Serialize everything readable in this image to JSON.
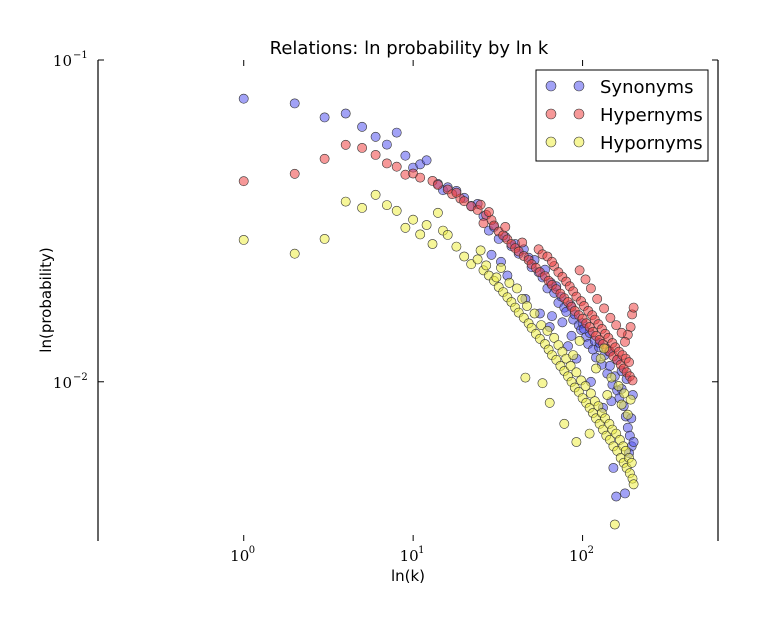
{
  "chart_data": {
    "type": "scatter",
    "title": "Relations: ln probability by ln k",
    "xlabel": "ln(k)",
    "ylabel": "ln(probability)",
    "x_scale": "log",
    "y_scale": "log",
    "xlim": [
      0.138,
      630
    ],
    "ylim": [
      0.0032,
      0.1
    ],
    "x_ticks": [
      {
        "value": 1,
        "base": "10",
        "exp": "0"
      },
      {
        "value": 10,
        "base": "10",
        "exp": "1"
      },
      {
        "value": 100,
        "base": "10",
        "exp": "2"
      }
    ],
    "y_ticks": [
      {
        "value": 0.01,
        "base": "10",
        "exp": "−2"
      },
      {
        "value": 0.1,
        "base": "10",
        "exp": "−1"
      }
    ],
    "grid": false,
    "legend_position": "top-right",
    "series": [
      {
        "name": "Synonyms",
        "color": "#5555ee",
        "points": [
          [
            1,
            0.0758
          ],
          [
            2,
            0.0733
          ],
          [
            3,
            0.0663
          ],
          [
            4,
            0.0682
          ],
          [
            5,
            0.062
          ],
          [
            6,
            0.0577
          ],
          [
            7,
            0.0546
          ],
          [
            8,
            0.0595
          ],
          [
            9,
            0.0504
          ],
          [
            10,
            0.0463
          ],
          [
            11,
            0.0474
          ],
          [
            12,
            0.0488
          ],
          [
            14,
            0.0412
          ],
          [
            15,
            0.0394
          ],
          [
            16,
            0.0402
          ],
          [
            18,
            0.0392
          ],
          [
            20,
            0.0373
          ],
          [
            22,
            0.0352
          ],
          [
            24,
            0.0357
          ],
          [
            26,
            0.0327
          ],
          [
            28,
            0.0295
          ],
          [
            30,
            0.0303
          ],
          [
            32,
            0.0278
          ],
          [
            35,
            0.0282
          ],
          [
            38,
            0.0264
          ],
          [
            40,
            0.0268
          ],
          [
            42,
            0.025
          ],
          [
            45,
            0.0258
          ],
          [
            48,
            0.0243
          ],
          [
            50,
            0.0227
          ],
          [
            52,
            0.0239
          ],
          [
            55,
            0.0219
          ],
          [
            58,
            0.0211
          ],
          [
            60,
            0.0223
          ],
          [
            62,
            0.0195
          ],
          [
            65,
            0.0203
          ],
          [
            68,
            0.0189
          ],
          [
            70,
            0.0198
          ],
          [
            72,
            0.0176
          ],
          [
            75,
            0.0184
          ],
          [
            78,
            0.017
          ],
          [
            80,
            0.0165
          ],
          [
            85,
            0.0173
          ],
          [
            88,
            0.0156
          ],
          [
            90,
            0.0162
          ],
          [
            95,
            0.015
          ],
          [
            98,
            0.0145
          ],
          [
            100,
            0.0152
          ],
          [
            105,
            0.0138
          ],
          [
            108,
            0.0131
          ],
          [
            110,
            0.0142
          ],
          [
            115,
            0.0126
          ],
          [
            118,
            0.0134
          ],
          [
            120,
            0.0119
          ],
          [
            125,
            0.0128
          ],
          [
            130,
            0.0113
          ],
          [
            135,
            0.0121
          ],
          [
            140,
            0.0106
          ],
          [
            145,
            0.0112
          ],
          [
            150,
            0.0098
          ],
          [
            155,
            0.0104
          ],
          [
            160,
            0.0094
          ],
          [
            165,
            0.0089
          ],
          [
            170,
            0.0095
          ],
          [
            175,
            0.0084
          ],
          [
            180,
            0.0078
          ],
          [
            185,
            0.0072
          ],
          [
            190,
            0.0068
          ],
          [
            195,
            0.0063
          ],
          [
            200,
            0.0065
          ],
          [
            152,
            0.0054
          ],
          [
            158,
            0.0044
          ],
          [
            178,
            0.0045
          ],
          [
            188,
            0.006
          ],
          [
            198,
            0.0091
          ],
          [
            148,
            0.0087
          ],
          [
            132,
            0.0083
          ],
          [
            112,
            0.01
          ],
          [
            92,
            0.0118
          ],
          [
            82,
            0.0129
          ],
          [
            64,
            0.0148
          ],
          [
            56,
            0.0163
          ],
          [
            46,
            0.0181
          ],
          [
            36,
            0.0214
          ],
          [
            33,
            0.0236
          ],
          [
            29,
            0.0248
          ],
          [
            170,
            0.0108
          ],
          [
            182,
            0.0102
          ],
          [
            160,
            0.0117
          ],
          [
            143,
            0.0124
          ],
          [
            126,
            0.0132
          ],
          [
            102,
            0.0146
          ],
          [
            86,
            0.0139
          ],
          [
            76,
            0.0153
          ],
          [
            66,
            0.016
          ],
          [
            194,
            0.0077
          ]
        ]
      },
      {
        "name": "Hypernyms",
        "color": "#ee4444",
        "points": [
          [
            1,
            0.042
          ],
          [
            2,
            0.0443
          ],
          [
            3,
            0.0493
          ],
          [
            4,
            0.0545
          ],
          [
            5,
            0.0533
          ],
          [
            6,
            0.0507
          ],
          [
            7,
            0.0477
          ],
          [
            8,
            0.0466
          ],
          [
            9,
            0.044
          ],
          [
            10,
            0.0444
          ],
          [
            11,
            0.0431
          ],
          [
            13,
            0.0421
          ],
          [
            14,
            0.0409
          ],
          [
            16,
            0.0396
          ],
          [
            17,
            0.0383
          ],
          [
            19,
            0.0371
          ],
          [
            20,
            0.0364
          ],
          [
            22,
            0.0351
          ],
          [
            24,
            0.0342
          ],
          [
            25,
            0.0355
          ],
          [
            27,
            0.033
          ],
          [
            29,
            0.0318
          ],
          [
            30,
            0.0306
          ],
          [
            32,
            0.0293
          ],
          [
            34,
            0.0285
          ],
          [
            36,
            0.0277
          ],
          [
            38,
            0.0268
          ],
          [
            40,
            0.026
          ],
          [
            42,
            0.0254
          ],
          [
            45,
            0.0246
          ],
          [
            48,
            0.0239
          ],
          [
            50,
            0.0232
          ],
          [
            53,
            0.0226
          ],
          [
            56,
            0.0219
          ],
          [
            60,
            0.0213
          ],
          [
            63,
            0.0206
          ],
          [
            66,
            0.02
          ],
          [
            70,
            0.0194
          ],
          [
            74,
            0.0188
          ],
          [
            78,
            0.0182
          ],
          [
            82,
            0.0177
          ],
          [
            86,
            0.0171
          ],
          [
            90,
            0.0166
          ],
          [
            95,
            0.0161
          ],
          [
            100,
            0.0157
          ],
          [
            105,
            0.0152
          ],
          [
            110,
            0.0148
          ],
          [
            115,
            0.0143
          ],
          [
            120,
            0.0139
          ],
          [
            126,
            0.0135
          ],
          [
            132,
            0.0131
          ],
          [
            138,
            0.0127
          ],
          [
            145,
            0.0124
          ],
          [
            152,
            0.012
          ],
          [
            160,
            0.0117
          ],
          [
            168,
            0.0113
          ],
          [
            175,
            0.011
          ],
          [
            182,
            0.0107
          ],
          [
            190,
            0.0104
          ],
          [
            197,
            0.0101
          ],
          [
            55,
            0.0258
          ],
          [
            58,
            0.0249
          ],
          [
            62,
            0.0245
          ],
          [
            68,
            0.0229
          ],
          [
            72,
            0.0219
          ],
          [
            76,
            0.0212
          ],
          [
            80,
            0.0205
          ],
          [
            84,
            0.0198
          ],
          [
            88,
            0.0191
          ],
          [
            92,
            0.0184
          ],
          [
            98,
            0.0178
          ],
          [
            102,
            0.0172
          ],
          [
            108,
            0.0166
          ],
          [
            114,
            0.0161
          ],
          [
            118,
            0.0156
          ],
          [
            124,
            0.0151
          ],
          [
            130,
            0.0146
          ],
          [
            136,
            0.0141
          ],
          [
            142,
            0.0137
          ],
          [
            150,
            0.0132
          ],
          [
            156,
            0.0128
          ],
          [
            164,
            0.0124
          ],
          [
            172,
            0.0121
          ],
          [
            180,
            0.0118
          ],
          [
            188,
            0.0115
          ],
          [
            196,
            0.0162
          ],
          [
            200,
            0.017
          ],
          [
            192,
            0.0148
          ],
          [
            185,
            0.014
          ],
          [
            178,
            0.0133
          ],
          [
            112,
            0.0195
          ],
          [
            104,
            0.0208
          ],
          [
            96,
            0.0222
          ],
          [
            122,
            0.0181
          ],
          [
            134,
            0.0169
          ],
          [
            146,
            0.0158
          ],
          [
            158,
            0.015
          ],
          [
            170,
            0.0142
          ],
          [
            66,
            0.0236
          ],
          [
            44,
            0.0271
          ],
          [
            35,
            0.0303
          ],
          [
            28,
            0.0337
          ],
          [
            26,
            0.0311
          ],
          [
            18,
            0.0387
          ]
        ]
      },
      {
        "name": "Hypornyms",
        "color": "#eeee44",
        "points": [
          [
            1,
            0.0276
          ],
          [
            2,
            0.025
          ],
          [
            3,
            0.0278
          ],
          [
            4,
            0.0363
          ],
          [
            5,
            0.0347
          ],
          [
            6,
            0.0381
          ],
          [
            7,
            0.0354
          ],
          [
            8,
            0.034
          ],
          [
            9,
            0.0301
          ],
          [
            10,
            0.0319
          ],
          [
            11,
            0.0287
          ],
          [
            12,
            0.0307
          ],
          [
            13,
            0.0268
          ],
          [
            14,
            0.0335
          ],
          [
            15,
            0.0295
          ],
          [
            16,
            0.0286
          ],
          [
            18,
            0.0263
          ],
          [
            20,
            0.0245
          ],
          [
            22,
            0.0232
          ],
          [
            24,
            0.024
          ],
          [
            26,
            0.0222
          ],
          [
            28,
            0.0214
          ],
          [
            30,
            0.0206
          ],
          [
            32,
            0.0197
          ],
          [
            34,
            0.019
          ],
          [
            36,
            0.0183
          ],
          [
            38,
            0.0177
          ],
          [
            40,
            0.017
          ],
          [
            42,
            0.0164
          ],
          [
            45,
            0.0158
          ],
          [
            48,
            0.0152
          ],
          [
            50,
            0.0147
          ],
          [
            53,
            0.0141
          ],
          [
            56,
            0.0136
          ],
          [
            60,
            0.0131
          ],
          [
            63,
            0.0126
          ],
          [
            66,
            0.0121
          ],
          [
            70,
            0.0117
          ],
          [
            74,
            0.0112
          ],
          [
            78,
            0.0108
          ],
          [
            82,
            0.0104
          ],
          [
            86,
            0.01
          ],
          [
            90,
            0.0096
          ],
          [
            95,
            0.0093
          ],
          [
            100,
            0.0089
          ],
          [
            105,
            0.0086
          ],
          [
            110,
            0.0083
          ],
          [
            115,
            0.008
          ],
          [
            120,
            0.0077
          ],
          [
            126,
            0.0074
          ],
          [
            132,
            0.0071
          ],
          [
            138,
            0.0068
          ],
          [
            145,
            0.0066
          ],
          [
            152,
            0.0063
          ],
          [
            160,
            0.0061
          ],
          [
            168,
            0.0058
          ],
          [
            175,
            0.0056
          ],
          [
            182,
            0.0054
          ],
          [
            190,
            0.0052
          ],
          [
            197,
            0.005
          ],
          [
            25,
            0.0256
          ],
          [
            27,
            0.023
          ],
          [
            31,
            0.0211
          ],
          [
            33,
            0.0226
          ],
          [
            37,
            0.0203
          ],
          [
            41,
            0.0195
          ],
          [
            44,
            0.0181
          ],
          [
            47,
            0.0172
          ],
          [
            52,
            0.0163
          ],
          [
            57,
            0.015
          ],
          [
            62,
            0.0144
          ],
          [
            68,
            0.0137
          ],
          [
            72,
            0.013
          ],
          [
            76,
            0.0124
          ],
          [
            80,
            0.0118
          ],
          [
            85,
            0.0112
          ],
          [
            92,
            0.0107
          ],
          [
            98,
            0.0101
          ],
          [
            104,
            0.0097
          ],
          [
            112,
            0.0092
          ],
          [
            118,
            0.0087
          ],
          [
            124,
            0.0084
          ],
          [
            130,
            0.008
          ],
          [
            136,
            0.0077
          ],
          [
            144,
            0.0074
          ],
          [
            150,
            0.0071
          ],
          [
            158,
            0.0069
          ],
          [
            166,
            0.0066
          ],
          [
            174,
            0.0063
          ],
          [
            180,
            0.0061
          ],
          [
            188,
            0.0058
          ],
          [
            195,
            0.0056
          ],
          [
            200,
            0.0048
          ],
          [
            155,
            0.0036
          ],
          [
            78,
            0.0074
          ],
          [
            64,
            0.0086
          ],
          [
            58,
            0.0099
          ],
          [
            46,
            0.0103
          ],
          [
            110,
            0.0069
          ],
          [
            92,
            0.0065
          ],
          [
            140,
            0.0091
          ],
          [
            170,
            0.0085
          ],
          [
            185,
            0.0079
          ],
          [
            163,
            0.0097
          ],
          [
            148,
            0.0103
          ],
          [
            120,
            0.011
          ],
          [
            88,
            0.0121
          ],
          [
            96,
            0.0134
          ],
          [
            128,
            0.0118
          ],
          [
            134,
            0.0127
          ],
          [
            176,
            0.0092
          ],
          [
            192,
            0.0088
          ]
        ]
      }
    ]
  }
}
